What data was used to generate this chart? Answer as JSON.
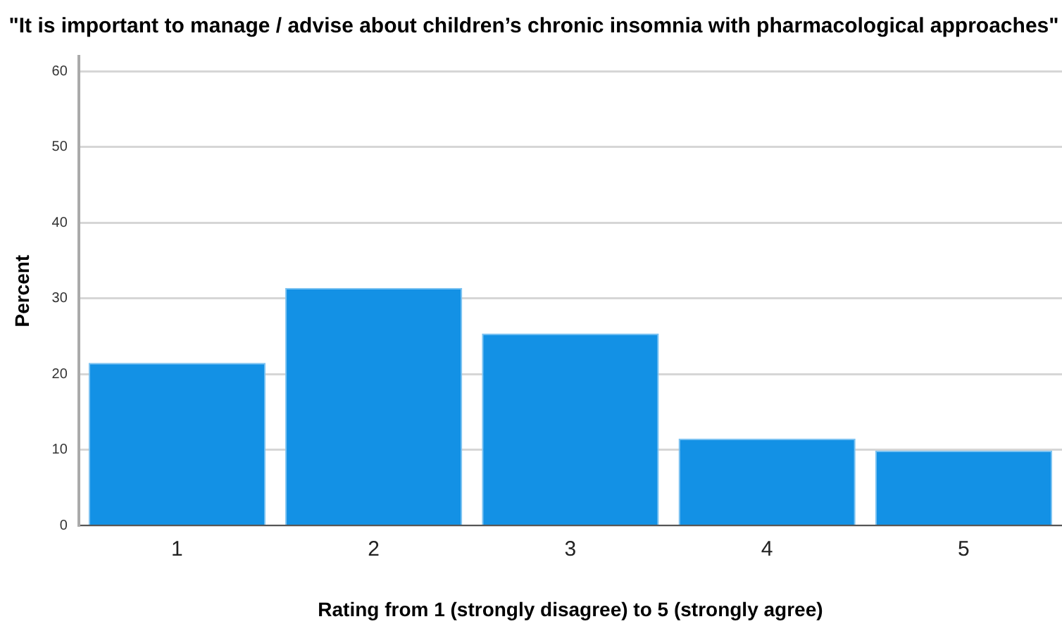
{
  "chart_data": {
    "type": "bar",
    "title": "\"It is important to manage / advise about children’s chronic insomnia with pharmacological approaches\"",
    "xlabel": "Rating from 1 (strongly disagree) to 5 (strongly agree)",
    "ylabel": "Percent",
    "categories": [
      "1",
      "2",
      "3",
      "4",
      "5"
    ],
    "values": [
      21.5,
      31.4,
      25.4,
      11.5,
      9.9
    ],
    "color": "#1391e5",
    "ylim": [
      0,
      62
    ],
    "yticks": [
      0,
      10,
      20,
      30,
      40,
      50,
      60
    ],
    "grid": "y",
    "legend": false
  }
}
